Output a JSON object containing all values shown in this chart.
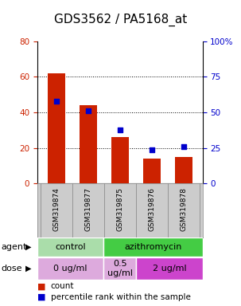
{
  "title": "GDS3562 / PA5168_at",
  "samples": [
    "GSM319874",
    "GSM319877",
    "GSM319875",
    "GSM319876",
    "GSM319878"
  ],
  "counts": [
    62,
    44,
    26,
    14,
    15
  ],
  "percentiles": [
    58,
    51,
    38,
    24,
    26
  ],
  "left_ylim": [
    0,
    80
  ],
  "right_ylim": [
    0,
    100
  ],
  "left_yticks": [
    0,
    20,
    40,
    60,
    80
  ],
  "right_yticks": [
    0,
    25,
    50,
    75,
    100
  ],
  "right_yticklabels": [
    "0",
    "25",
    "50",
    "75",
    "100%"
  ],
  "left_yticklabels": [
    "0",
    "20",
    "40",
    "60",
    "80"
  ],
  "bar_color": "#cc2200",
  "dot_color": "#0000cc",
  "agent_row": [
    {
      "label": "control",
      "start": 0,
      "end": 2,
      "color": "#aaddaa"
    },
    {
      "label": "azithromycin",
      "start": 2,
      "end": 5,
      "color": "#44cc44"
    }
  ],
  "dose_row": [
    {
      "label": "0 ug/ml",
      "start": 0,
      "end": 2,
      "color": "#ddaadd"
    },
    {
      "label": "0.5\nug/ml",
      "start": 2,
      "end": 3,
      "color": "#ddaadd"
    },
    {
      "label": "2 ug/ml",
      "start": 3,
      "end": 5,
      "color": "#cc44cc"
    }
  ],
  "legend_count_label": "count",
  "legend_pct_label": "percentile rank within the sample",
  "background_color": "#ffffff",
  "sample_bg_color": "#cccccc",
  "title_fontsize": 11,
  "tick_fontsize": 7.5,
  "sample_fontsize": 6.5,
  "row_fontsize": 8,
  "legend_fontsize": 7.5
}
